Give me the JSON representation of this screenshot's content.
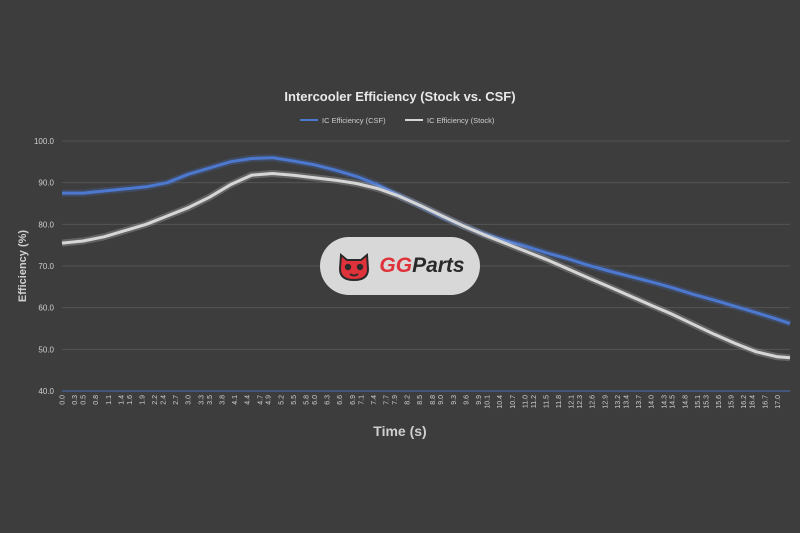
{
  "colors": {
    "background": "#3d3d3d",
    "csf": "#4c78d0",
    "stock": "#d6d6d6",
    "grid": "#545454",
    "text": "#cfcfcf"
  },
  "watermark": {
    "icon": "ggparts-mascot-icon",
    "text_gg": "GG",
    "text_parts": "Parts"
  },
  "chart_data": {
    "type": "line",
    "title": "Intercooler Efficiency (Stock vs. CSF)",
    "xlabel": "Time (s)",
    "ylabel": "Efficiency (%)",
    "ylim": [
      40,
      100
    ],
    "xlim": [
      0,
      17.3
    ],
    "grid": true,
    "legend_position": "top",
    "y_ticks": [
      "40.0",
      "50.0",
      "60.0",
      "70.0",
      "80.0",
      "90.0",
      "100.0"
    ],
    "x_ticks": [
      "0.0",
      "0.3",
      "0.5",
      "0.8",
      "1.1",
      "1.4",
      "1.6",
      "1.9",
      "2.2",
      "2.4",
      "2.7",
      "3.0",
      "3.3",
      "3.5",
      "3.8",
      "4.1",
      "4.4",
      "4.7",
      "4.9",
      "5.2",
      "5.5",
      "5.8",
      "6.0",
      "6.3",
      "6.6",
      "6.9",
      "7.1",
      "7.4",
      "7.7",
      "7.9",
      "8.2",
      "8.5",
      "8.8",
      "9.0",
      "9.3",
      "9.6",
      "9.9",
      "10.1",
      "10.4",
      "10.7",
      "11.0",
      "11.2",
      "11.5",
      "11.8",
      "12.1",
      "12.3",
      "12.6",
      "12.9",
      "13.2",
      "13.4",
      "13.7",
      "14.0",
      "14.3",
      "14.5",
      "14.8",
      "15.1",
      "15.3",
      "15.6",
      "15.9",
      "16.2",
      "16.4",
      "16.7",
      "17.0"
    ],
    "series": [
      {
        "name": "IC Efficiency (CSF)",
        "x": [
          0,
          0.5,
          1.0,
          1.5,
          2.0,
          2.5,
          3.0,
          3.5,
          4.0,
          4.5,
          5.0,
          5.5,
          6.0,
          6.5,
          7.0,
          7.5,
          8.0,
          8.5,
          9.0,
          9.5,
          10.0,
          10.5,
          11.0,
          11.5,
          12.0,
          12.5,
          13.0,
          13.5,
          14.0,
          14.5,
          15.0,
          15.5,
          16.0,
          16.5,
          17.0,
          17.3
        ],
        "y": [
          87.5,
          87.5,
          88.0,
          88.5,
          89.0,
          90.0,
          92.0,
          93.5,
          95.0,
          95.8,
          96.0,
          95.2,
          94.3,
          93.0,
          91.5,
          89.5,
          87.0,
          84.5,
          82.0,
          79.8,
          77.8,
          76.2,
          74.8,
          73.2,
          71.8,
          70.2,
          68.8,
          67.5,
          66.2,
          64.8,
          63.2,
          61.8,
          60.3,
          58.8,
          57.2,
          56.2
        ]
      },
      {
        "name": "IC Efficiency (Stock)",
        "x": [
          0,
          0.5,
          1.0,
          1.5,
          2.0,
          2.5,
          3.0,
          3.5,
          4.0,
          4.5,
          5.0,
          5.5,
          6.0,
          6.5,
          7.0,
          7.5,
          8.0,
          8.5,
          9.0,
          9.5,
          10.0,
          10.5,
          11.0,
          11.5,
          12.0,
          12.5,
          13.0,
          13.5,
          14.0,
          14.5,
          15.0,
          15.5,
          16.0,
          16.5,
          17.0,
          17.3
        ],
        "y": [
          75.5,
          76.0,
          77.0,
          78.5,
          80.0,
          82.0,
          84.0,
          86.5,
          89.5,
          91.8,
          92.2,
          91.8,
          91.2,
          90.6,
          89.8,
          88.6,
          86.8,
          84.6,
          82.2,
          79.8,
          77.6,
          75.6,
          73.6,
          71.6,
          69.4,
          67.2,
          65.0,
          62.8,
          60.6,
          58.4,
          56.0,
          53.6,
          51.4,
          49.4,
          48.2,
          48.0
        ]
      }
    ]
  }
}
